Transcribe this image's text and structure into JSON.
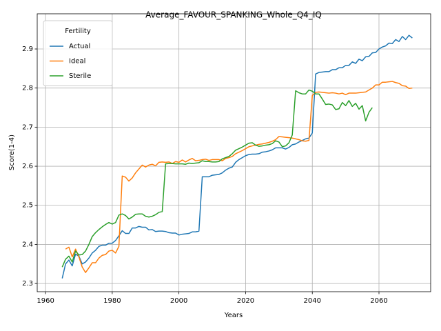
{
  "chart_data": {
    "type": "line",
    "title": "Average_FAVOUR_SPANKING_Whole_Q4_IQ",
    "xlabel": "Years",
    "ylabel": "Score(1-4)",
    "legend_title": "Fertility",
    "legend": "upper left",
    "grid": true,
    "xlim": [
      1957.5,
      2075.5
    ],
    "ylim": [
      2.279,
      2.99
    ],
    "xticks": [
      1960,
      1980,
      2000,
      2020,
      2040,
      2060
    ],
    "yticks": [
      2.3,
      2.4,
      2.5,
      2.6,
      2.7,
      2.8,
      2.9
    ],
    "x": [
      1965,
      1966,
      1967,
      1968,
      1969,
      1970,
      1971,
      1972,
      1973,
      1974,
      1975,
      1976,
      1977,
      1978,
      1979,
      1980,
      1981,
      1982,
      1983,
      1984,
      1985,
      1986,
      1987,
      1988,
      1989,
      1990,
      1991,
      1992,
      1993,
      1994,
      1995,
      1996,
      1997,
      1998,
      1999,
      2000,
      2001,
      2002,
      2003,
      2004,
      2005,
      2006,
      2007,
      2008,
      2009,
      2010,
      2011,
      2012,
      2013,
      2014,
      2015,
      2016,
      2017,
      2018,
      2019,
      2020,
      2021,
      2022,
      2023,
      2024,
      2025,
      2026,
      2027,
      2028,
      2029,
      2030,
      2031,
      2032,
      2033,
      2034,
      2035,
      2036,
      2037,
      2038,
      2039,
      2040,
      2041,
      2042,
      2043,
      2044,
      2045,
      2046,
      2047,
      2048,
      2049,
      2050,
      2051,
      2052,
      2053,
      2054,
      2055,
      2056,
      2057,
      2058,
      2059,
      2060,
      2061,
      2062,
      2063,
      2064,
      2065,
      2066,
      2067,
      2068,
      2069,
      2070
    ],
    "series": [
      {
        "name": "Actual",
        "color": "#1f77b4",
        "values": [
          2.313,
          2.35,
          2.36,
          2.345,
          2.375,
          2.37,
          2.35,
          2.355,
          2.365,
          2.378,
          2.385,
          2.395,
          2.398,
          2.398,
          2.403,
          2.403,
          2.41,
          2.422,
          2.435,
          2.428,
          2.428,
          2.442,
          2.442,
          2.446,
          2.444,
          2.444,
          2.437,
          2.438,
          2.433,
          2.434,
          2.434,
          2.433,
          2.43,
          2.429,
          2.429,
          2.424,
          2.426,
          2.427,
          2.428,
          2.432,
          2.432,
          2.434,
          2.573,
          2.573,
          2.573,
          2.577,
          2.578,
          2.579,
          2.583,
          2.59,
          2.595,
          2.598,
          2.61,
          2.617,
          2.622,
          2.627,
          2.63,
          2.631,
          2.631,
          2.632,
          2.636,
          2.637,
          2.639,
          2.642,
          2.647,
          2.647,
          2.647,
          2.644,
          2.648,
          2.655,
          2.657,
          2.662,
          2.666,
          2.67,
          2.672,
          2.685,
          2.836,
          2.84,
          2.841,
          2.842,
          2.842,
          2.847,
          2.847,
          2.852,
          2.852,
          2.858,
          2.858,
          2.867,
          2.863,
          2.874,
          2.87,
          2.88,
          2.881,
          2.89,
          2.891,
          2.9,
          2.905,
          2.908,
          2.915,
          2.914,
          2.924,
          2.919,
          2.932,
          2.924,
          2.935,
          2.928
        ]
      },
      {
        "name": "Ideal",
        "color": "#ff7f0e",
        "values": [
          null,
          2.388,
          2.393,
          2.368,
          2.388,
          2.368,
          2.342,
          2.328,
          2.34,
          2.353,
          2.353,
          2.365,
          2.372,
          2.374,
          2.383,
          2.385,
          2.378,
          2.395,
          2.575,
          2.572,
          2.562,
          2.57,
          2.583,
          2.593,
          2.603,
          2.598,
          2.603,
          2.605,
          2.601,
          2.61,
          2.611,
          2.61,
          2.611,
          2.607,
          2.612,
          2.61,
          2.616,
          2.611,
          2.616,
          2.62,
          2.614,
          2.615,
          2.617,
          2.618,
          2.615,
          2.617,
          2.617,
          2.617,
          2.614,
          2.62,
          2.622,
          2.625,
          2.632,
          2.636,
          2.64,
          2.645,
          2.65,
          2.652,
          2.654,
          2.656,
          2.657,
          2.659,
          2.661,
          2.664,
          2.668,
          2.676,
          2.675,
          2.674,
          2.673,
          2.672,
          2.67,
          2.668,
          2.665,
          2.664,
          2.666,
          2.781,
          2.789,
          2.79,
          2.789,
          2.788,
          2.787,
          2.788,
          2.787,
          2.785,
          2.787,
          2.783,
          2.787,
          2.787,
          2.787,
          2.788,
          2.789,
          2.79,
          2.795,
          2.8,
          2.808,
          2.808,
          2.815,
          2.815,
          2.816,
          2.817,
          2.814,
          2.812,
          2.806,
          2.805,
          2.799,
          2.8
        ]
      },
      {
        "name": "Sterile",
        "color": "#2ca02c",
        "values": [
          2.342,
          2.362,
          2.37,
          2.355,
          2.383,
          2.373,
          2.374,
          2.383,
          2.4,
          2.42,
          2.43,
          2.438,
          2.445,
          2.451,
          2.456,
          2.452,
          2.456,
          2.475,
          2.478,
          2.474,
          2.465,
          2.47,
          2.477,
          2.478,
          2.478,
          2.472,
          2.47,
          2.472,
          2.476,
          2.482,
          2.484,
          2.606,
          2.607,
          2.607,
          2.606,
          2.606,
          2.606,
          2.605,
          2.608,
          2.607,
          2.608,
          2.609,
          2.614,
          2.612,
          2.612,
          2.611,
          2.611,
          2.612,
          2.619,
          2.622,
          2.625,
          2.632,
          2.641,
          2.645,
          2.649,
          2.654,
          2.659,
          2.66,
          2.654,
          2.651,
          2.652,
          2.654,
          2.655,
          2.658,
          2.665,
          2.662,
          2.65,
          2.652,
          2.66,
          2.68,
          2.793,
          2.788,
          2.785,
          2.785,
          2.795,
          2.792,
          2.785,
          2.785,
          2.772,
          2.758,
          2.759,
          2.757,
          2.745,
          2.747,
          2.763,
          2.755,
          2.768,
          2.753,
          2.761,
          2.746,
          2.755,
          2.716,
          2.738,
          2.75,
          null,
          null,
          null,
          null,
          null,
          null,
          null,
          null,
          null,
          null,
          null,
          null
        ]
      }
    ]
  }
}
